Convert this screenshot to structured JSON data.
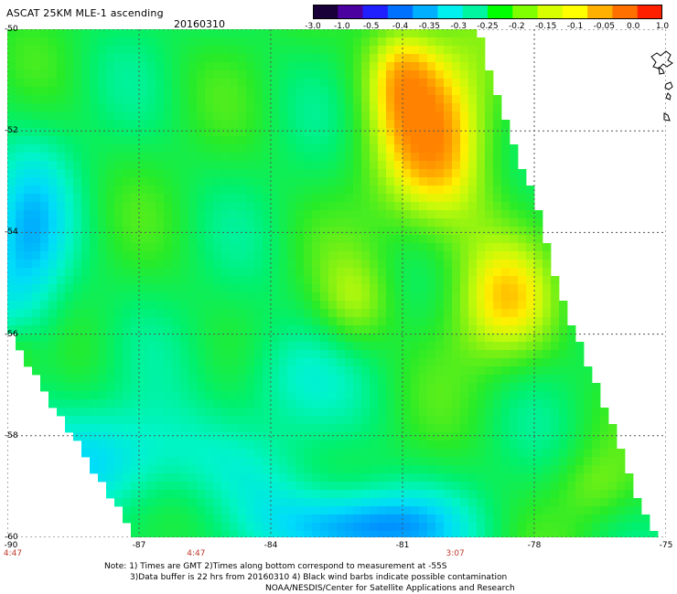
{
  "header": {
    "title": "ASCAT 25KM MLE-1 ascending",
    "date": "20160310"
  },
  "colorbar": {
    "labels": [
      "-3.0",
      "-1.0",
      "-0.5",
      "-0.4",
      "-0.35",
      "-0.3",
      "-0.25",
      "-0.2",
      "-0.15",
      "-0.1",
      "-0.05",
      "0.0",
      "1.0"
    ],
    "colors": [
      "#1a0038",
      "#4b00a0",
      "#2020ff",
      "#0070ff",
      "#00b0ff",
      "#00f0f0",
      "#00f5a0",
      "#00ff00",
      "#80ff00",
      "#d8ff00",
      "#ffff00",
      "#ffb000",
      "#ff7000",
      "#ff2000"
    ]
  },
  "axes": {
    "latitudes": [
      "-50",
      "-52",
      "-54",
      "-56",
      "-58",
      "-60"
    ],
    "longitudes": [
      "-90",
      "-87",
      "-84",
      "-81",
      "-78",
      "-75"
    ],
    "times": [
      {
        "text": "4:47",
        "lon": -90
      },
      {
        "text": "4:47",
        "lon": -85.7
      },
      {
        "text": "3:07",
        "lon": -79.8
      }
    ]
  },
  "notes": {
    "line1": "Note: 1) Times are GMT 2)Times along bottom correspond to measurement at -55S",
    "line2": "3)Data buffer is 22 hrs from 20160310 4) Black wind barbs indicate possible contamination",
    "line3": "NOAA/NESDIS/Center for Satellite Applications and Research"
  }
}
